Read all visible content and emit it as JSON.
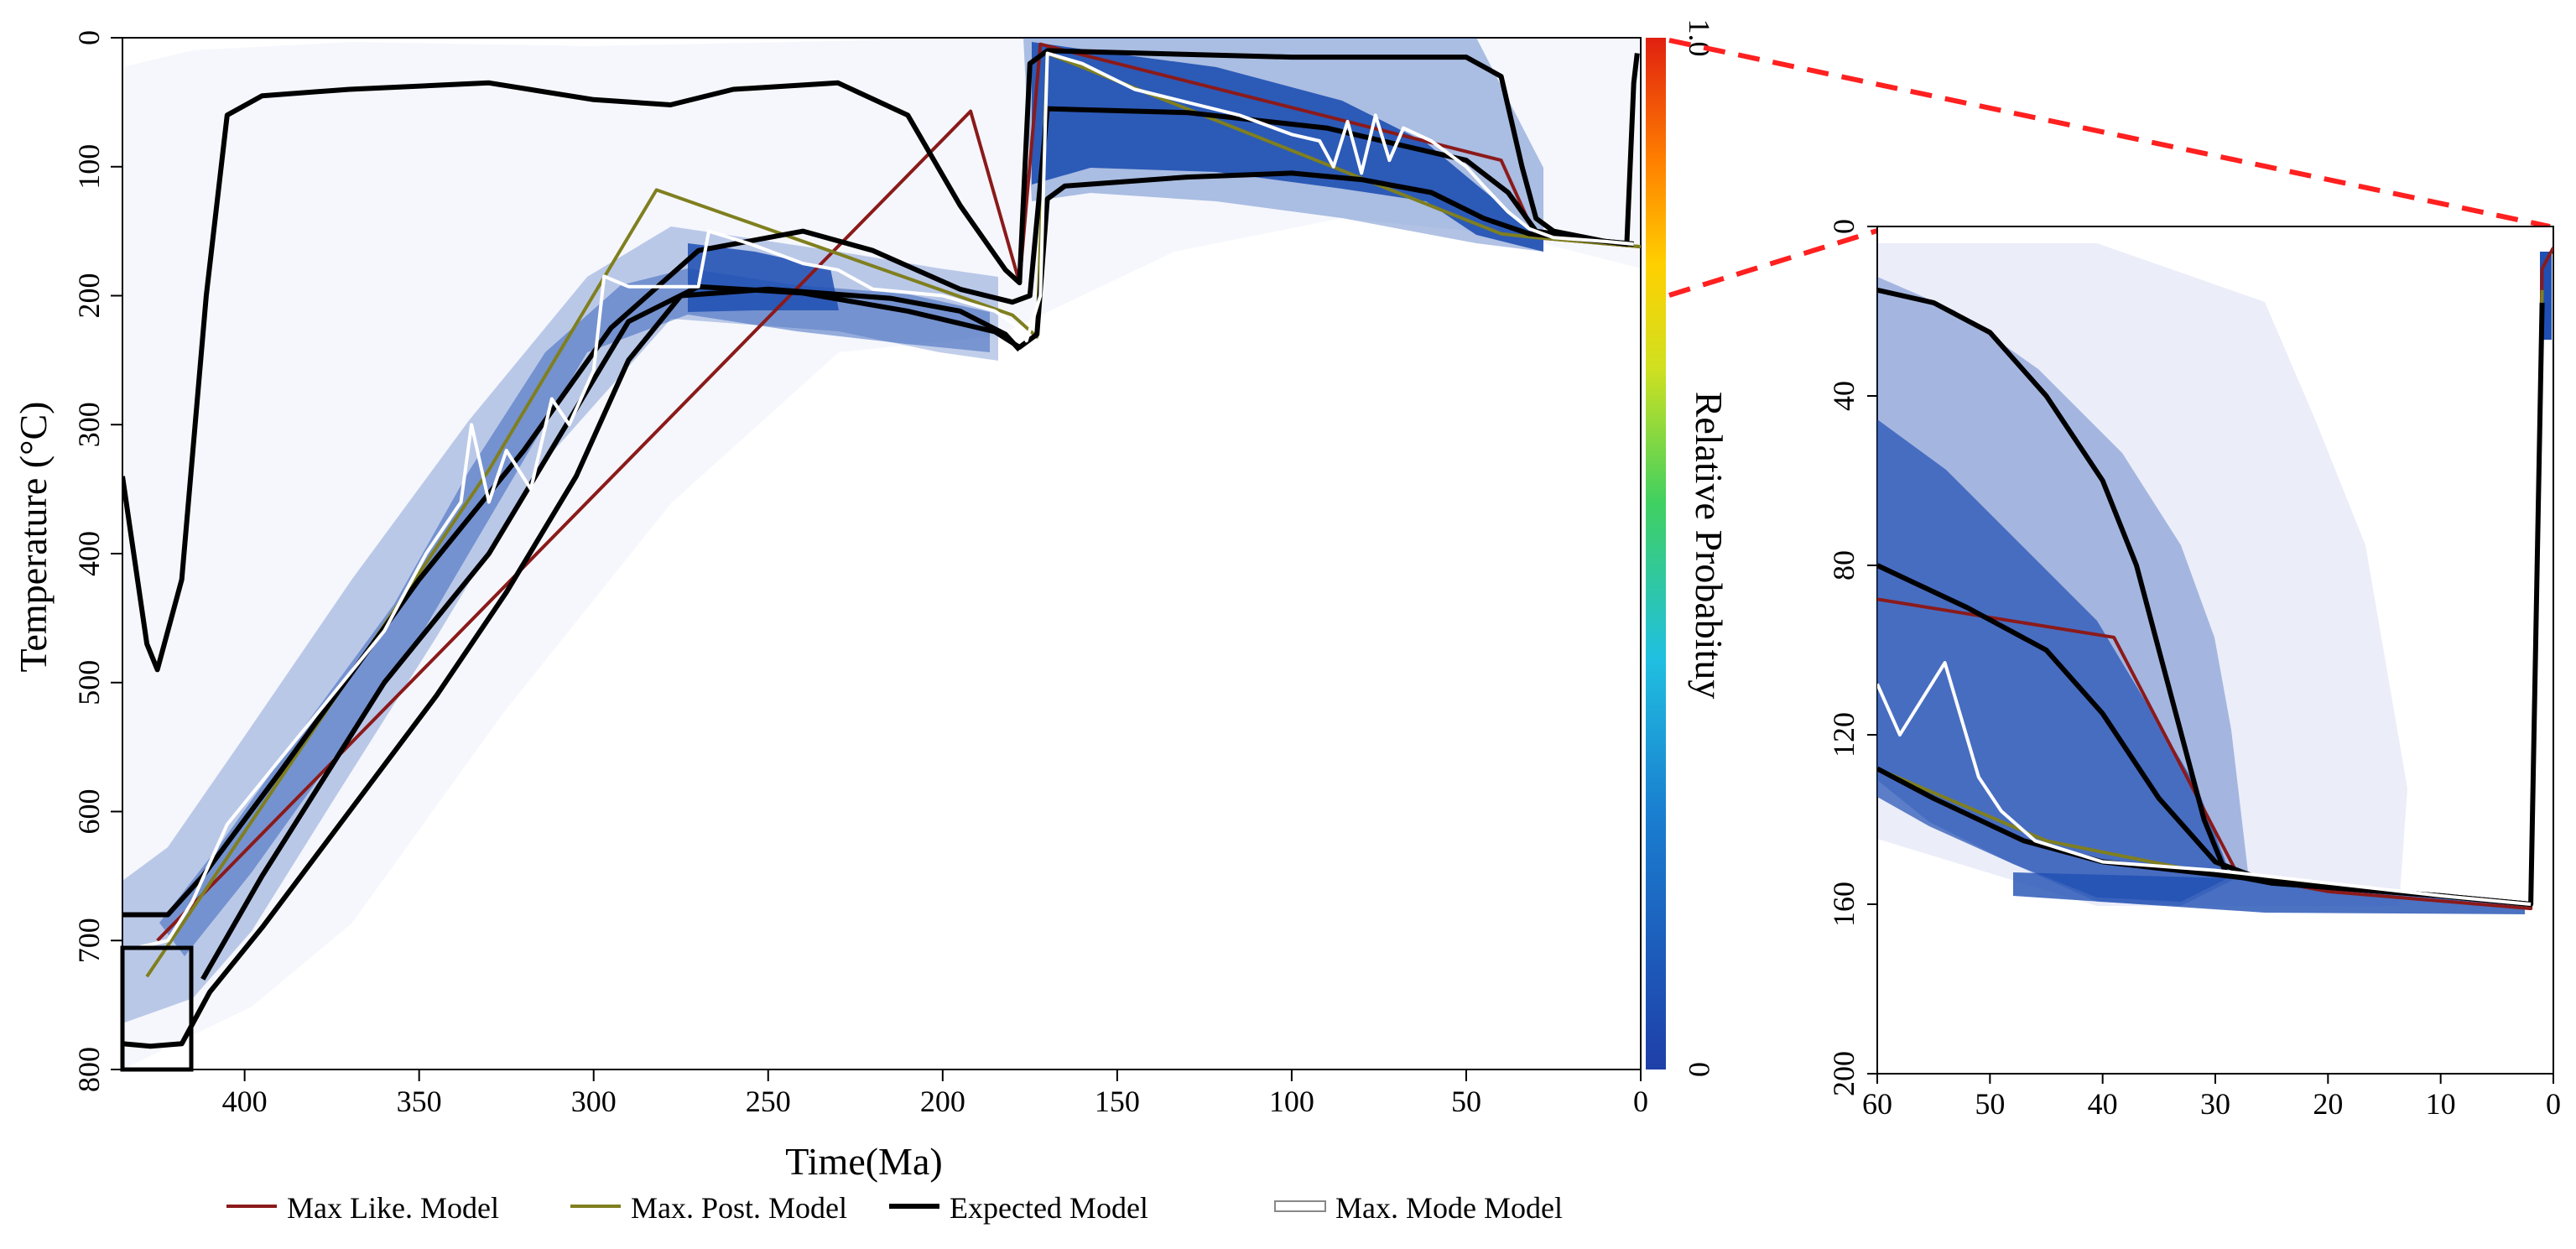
{
  "colors": {
    "max_like": "#8b1a1a",
    "max_post": "#7f7f1f",
    "expected": "#000000",
    "max_mode": "#ffffff",
    "density": "#1f4fb3",
    "zoom_line": "#ff2020",
    "inset_box": "#000000",
    "colorbar_stops": [
      "#1f3fa8",
      "#1a7fd0",
      "#20c0e0",
      "#40d060",
      "#d0e020",
      "#ffd000",
      "#ff8000",
      "#e02010"
    ]
  },
  "chart_data": [
    {
      "type": "line",
      "panel": "main",
      "xlabel": "Time(Ma)",
      "ylabel": "Temperature (°C)",
      "xlim": [
        435,
        0
      ],
      "ylim": [
        0,
        800
      ],
      "x_ticks": [
        "400",
        "350",
        "300",
        "250",
        "200",
        "150",
        "100",
        "50",
        "0"
      ],
      "y_ticks": [
        "0",
        "100",
        "200",
        "300",
        "400",
        "500",
        "600",
        "700",
        "800"
      ],
      "colorbar": {
        "label": "Relative Probabituy",
        "min_label": "0",
        "max_label": "1.0"
      },
      "series": [
        {
          "name": "Max Like. Model",
          "key": "max_like",
          "points": [
            [
              425,
              700
            ],
            [
              192,
              57
            ],
            [
              178,
              190
            ],
            [
              172,
              5
            ],
            [
              40,
              95
            ],
            [
              30,
              155
            ],
            [
              0,
              162
            ]
          ]
        },
        {
          "name": "Max. Post. Model",
          "key": "max_post",
          "points": [
            [
              428,
              728
            ],
            [
              330,
              335
            ],
            [
              282,
              118
            ],
            [
              180,
              215
            ],
            [
              173,
              232
            ],
            [
              170,
              12
            ],
            [
              40,
              152
            ],
            [
              30,
              155
            ],
            [
              0,
              162
            ]
          ]
        },
        {
          "name": "Expected Model",
          "key": "expected_upper",
          "points": [
            [
              435,
              340
            ],
            [
              428,
              470
            ],
            [
              425,
              490
            ],
            [
              418,
              420
            ],
            [
              411,
              200
            ],
            [
              405,
              60
            ],
            [
              395,
              45
            ],
            [
              370,
              40
            ],
            [
              330,
              35
            ],
            [
              300,
              48
            ],
            [
              278,
              52
            ],
            [
              260,
              40
            ],
            [
              230,
              35
            ],
            [
              210,
              60
            ],
            [
              195,
              130
            ],
            [
              182,
              180
            ],
            [
              178,
              190
            ],
            [
              175,
              20
            ],
            [
              170,
              10
            ],
            [
              100,
              15
            ],
            [
              70,
              15
            ],
            [
              50,
              15
            ],
            [
              40,
              30
            ],
            [
              34,
              100
            ],
            [
              30,
              140
            ],
            [
              25,
              150
            ],
            [
              10,
              158
            ],
            [
              4,
              160
            ],
            [
              2,
              35
            ],
            [
              1,
              12
            ]
          ]
        },
        {
          "name": "Expected Model (inner upper)",
          "key": "expected_mid_upper",
          "points": [
            [
              435,
              680
            ],
            [
              422,
              680
            ],
            [
              412,
              650
            ],
            [
              390,
              570
            ],
            [
              350,
              420
            ],
            [
              320,
              320
            ],
            [
              295,
              225
            ],
            [
              270,
              165
            ],
            [
              240,
              150
            ],
            [
              220,
              165
            ],
            [
              195,
              195
            ],
            [
              180,
              205
            ],
            [
              175,
              200
            ],
            [
              170,
              55
            ],
            [
              130,
              58
            ],
            [
              90,
              70
            ],
            [
              50,
              95
            ],
            [
              38,
              120
            ],
            [
              30,
              150
            ],
            [
              10,
              158
            ],
            [
              2,
              160
            ]
          ]
        },
        {
          "name": "Expected Model (inner lower)",
          "key": "expected_mid_lower",
          "points": [
            [
              412,
              730
            ],
            [
              395,
              650
            ],
            [
              360,
              500
            ],
            [
              330,
              400
            ],
            [
              310,
              310
            ],
            [
              290,
              220
            ],
            [
              270,
              193
            ],
            [
              240,
              198
            ],
            [
              210,
              212
            ],
            [
              185,
              228
            ],
            [
              178,
              240
            ],
            [
              173,
              230
            ],
            [
              170,
              125
            ],
            [
              165,
              115
            ],
            [
              130,
              108
            ],
            [
              100,
              105
            ],
            [
              80,
              110
            ],
            [
              60,
              120
            ],
            [
              45,
              140
            ],
            [
              32,
              152
            ],
            [
              10,
              158
            ],
            [
              2,
              160
            ]
          ]
        },
        {
          "name": "Expected Model (lower)",
          "key": "expected_lower",
          "points": [
            [
              435,
              780
            ],
            [
              427,
              782
            ],
            [
              418,
              780
            ],
            [
              410,
              740
            ],
            [
              395,
              690
            ],
            [
              370,
              600
            ],
            [
              345,
              510
            ],
            [
              325,
              430
            ],
            [
              305,
              340
            ],
            [
              290,
              250
            ],
            [
              275,
              200
            ],
            [
              250,
              195
            ],
            [
              215,
              202
            ],
            [
              195,
              212
            ],
            [
              182,
              230
            ],
            [
              178,
              242
            ]
          ]
        },
        {
          "name": "Max. Mode Model",
          "key": "max_mode",
          "points": [
            [
              430,
              705
            ],
            [
              422,
              700
            ],
            [
              415,
              670
            ],
            [
              405,
              610
            ],
            [
              390,
              560
            ],
            [
              375,
              510
            ],
            [
              360,
              460
            ],
            [
              348,
              400
            ],
            [
              338,
              360
            ],
            [
              335,
              300
            ],
            [
              330,
              360
            ],
            [
              325,
              320
            ],
            [
              318,
              350
            ],
            [
              312,
              280
            ],
            [
              307,
              300
            ],
            [
              300,
              258
            ],
            [
              297,
              185
            ],
            [
              290,
              193
            ],
            [
              270,
              193
            ],
            [
              267,
              150
            ],
            [
              255,
              160
            ],
            [
              240,
              175
            ],
            [
              230,
              180
            ],
            [
              220,
              195
            ],
            [
              200,
              200
            ],
            [
              185,
              212
            ],
            [
              178,
              225
            ],
            [
              176,
              235
            ],
            [
              172,
              200
            ],
            [
              170,
              12
            ],
            [
              160,
              20
            ],
            [
              145,
              40
            ],
            [
              130,
              50
            ],
            [
              115,
              60
            ],
            [
              100,
              75
            ],
            [
              92,
              80
            ],
            [
              88,
              100
            ],
            [
              84,
              65
            ],
            [
              80,
              105
            ],
            [
              76,
              60
            ],
            [
              72,
              95
            ],
            [
              68,
              70
            ],
            [
              60,
              80
            ],
            [
              50,
              100
            ],
            [
              45,
              115
            ],
            [
              38,
              135
            ],
            [
              32,
              148
            ],
            [
              25,
              155
            ],
            [
              10,
              158
            ],
            [
              2,
              160
            ]
          ]
        }
      ]
    },
    {
      "type": "line",
      "panel": "inset",
      "xlabel": "",
      "ylabel": "",
      "xlim": [
        60,
        0
      ],
      "ylim": [
        0,
        200
      ],
      "x_ticks": [
        "60",
        "50",
        "40",
        "30",
        "20",
        "10",
        "0"
      ],
      "y_ticks": [
        "0",
        "40",
        "80",
        "120",
        "160",
        "200"
      ],
      "series": [
        {
          "name": "Max Like. Model",
          "key": "max_like",
          "points": [
            [
              60,
              88
            ],
            [
              39,
              97
            ],
            [
              28,
              153
            ],
            [
              20,
              157
            ],
            [
              2,
              161
            ],
            [
              1,
              10
            ],
            [
              0,
              5
            ]
          ]
        },
        {
          "name": "Max. Post. Model",
          "key": "max_post",
          "points": [
            [
              60,
              128
            ],
            [
              45,
              145
            ],
            [
              30,
              153
            ],
            [
              10,
              158
            ],
            [
              2,
              160
            ],
            [
              1,
              15
            ]
          ]
        },
        {
          "name": "Expected Model",
          "key": "expected_upper",
          "points": [
            [
              60,
              15
            ],
            [
              55,
              18
            ],
            [
              50,
              25
            ],
            [
              45,
              40
            ],
            [
              40,
              60
            ],
            [
              37,
              80
            ],
            [
              35,
              100
            ],
            [
              33,
              120
            ],
            [
              31,
              140
            ],
            [
              29,
              153
            ],
            [
              25,
              155
            ],
            [
              10,
              158
            ],
            [
              2,
              160
            ],
            [
              1,
              18
            ]
          ]
        },
        {
          "name": "Expected Model (middle)",
          "key": "expected_mid",
          "points": [
            [
              60,
              80
            ],
            [
              52,
              90
            ],
            [
              45,
              100
            ],
            [
              40,
              115
            ],
            [
              35,
              135
            ],
            [
              30,
              150
            ],
            [
              25,
              155
            ],
            [
              10,
              158
            ],
            [
              2,
              160
            ]
          ]
        },
        {
          "name": "Expected Model (lower)",
          "key": "expected_lower",
          "points": [
            [
              60,
              128
            ],
            [
              55,
              135
            ],
            [
              47,
              145
            ],
            [
              40,
              150
            ],
            [
              30,
              153
            ],
            [
              20,
              156
            ],
            [
              10,
              158
            ],
            [
              2,
              160
            ]
          ]
        },
        {
          "name": "Max. Mode Model",
          "key": "max_mode",
          "points": [
            [
              60,
              108
            ],
            [
              58,
              120
            ],
            [
              54,
              103
            ],
            [
              51,
              130
            ],
            [
              49,
              138
            ],
            [
              46,
              145
            ],
            [
              40,
              150
            ],
            [
              30,
              152
            ],
            [
              20,
              155
            ],
            [
              10,
              158
            ],
            [
              2,
              160
            ]
          ]
        }
      ]
    }
  ],
  "legend": [
    {
      "label": "Max Like. Model",
      "key": "max_like"
    },
    {
      "label": "Max. Post. Model",
      "key": "max_post"
    },
    {
      "label": "Expected Model",
      "key": "expected"
    },
    {
      "label": "Max. Mode Model",
      "key": "max_mode"
    }
  ]
}
